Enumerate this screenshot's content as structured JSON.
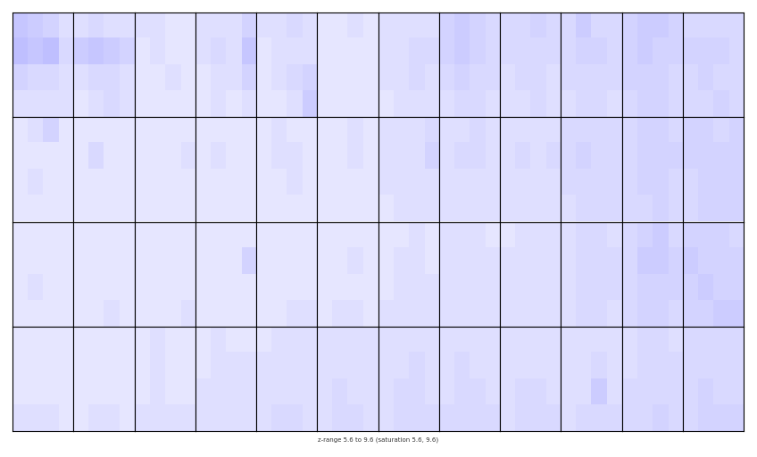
{
  "chart_data": {
    "type": "heatmap",
    "caption": "z-range 5.6 to 9.6 (saturation 5.6, 9.6)",
    "zlim": [
      5.6,
      9.6
    ],
    "colors": [
      "#ffffff",
      "#0000ff"
    ],
    "tick_labels": false,
    "panels": [
      [
        [
          [
            6.5,
            6.4,
            6.3,
            6.1
          ],
          [
            6.6,
            6.5,
            6.6,
            6.2
          ],
          [
            6.3,
            6.2,
            6.2,
            6.1
          ],
          [
            6.1,
            6.1,
            6.1,
            6.1
          ]
        ],
        [
          [
            6.1,
            6.2,
            6.1,
            6.1
          ],
          [
            6.4,
            6.5,
            6.4,
            6.3
          ],
          [
            6.1,
            6.2,
            6.2,
            6.1
          ],
          [
            6.0,
            6.1,
            6.2,
            6.1
          ]
        ],
        [
          [
            6.1,
            6.1,
            6.0,
            6.0
          ],
          [
            6.0,
            6.1,
            6.0,
            6.0
          ],
          [
            6.0,
            6.0,
            6.1,
            6.0
          ],
          [
            6.0,
            6.0,
            6.0,
            6.0
          ]
        ],
        [
          [
            6.1,
            6.1,
            6.1,
            6.3
          ],
          [
            6.1,
            6.2,
            6.1,
            6.5
          ],
          [
            6.0,
            6.1,
            6.1,
            6.3
          ],
          [
            6.0,
            6.1,
            6.0,
            6.1
          ]
        ],
        [
          [
            6.1,
            6.1,
            6.2,
            6.1
          ],
          [
            6.0,
            6.1,
            6.1,
            6.1
          ],
          [
            6.0,
            6.1,
            6.2,
            6.3
          ],
          [
            6.0,
            6.0,
            6.1,
            6.4
          ]
        ],
        [
          [
            6.0,
            6.0,
            6.1,
            6.0
          ],
          [
            6.0,
            6.0,
            6.0,
            6.0
          ],
          [
            6.0,
            6.0,
            6.0,
            6.0
          ],
          [
            6.0,
            6.0,
            6.0,
            6.0
          ]
        ],
        [
          [
            6.1,
            6.1,
            6.1,
            6.1
          ],
          [
            6.1,
            6.1,
            6.2,
            6.2
          ],
          [
            6.1,
            6.1,
            6.2,
            6.1
          ],
          [
            6.0,
            6.1,
            6.1,
            6.1
          ]
        ],
        [
          [
            6.3,
            6.4,
            6.3,
            6.2
          ],
          [
            6.3,
            6.4,
            6.3,
            6.2
          ],
          [
            6.2,
            6.3,
            6.2,
            6.2
          ],
          [
            6.1,
            6.2,
            6.2,
            6.1
          ]
        ],
        [
          [
            6.2,
            6.2,
            6.3,
            6.2
          ],
          [
            6.2,
            6.2,
            6.2,
            6.2
          ],
          [
            6.1,
            6.2,
            6.2,
            6.1
          ],
          [
            6.1,
            6.1,
            6.2,
            6.1
          ]
        ],
        [
          [
            6.2,
            6.4,
            6.2,
            6.2
          ],
          [
            6.2,
            6.3,
            6.3,
            6.2
          ],
          [
            6.2,
            6.2,
            6.2,
            6.2
          ],
          [
            6.1,
            6.2,
            6.2,
            6.1
          ]
        ],
        [
          [
            6.3,
            6.4,
            6.4,
            6.3
          ],
          [
            6.3,
            6.4,
            6.3,
            6.3
          ],
          [
            6.3,
            6.3,
            6.3,
            6.2
          ],
          [
            6.2,
            6.3,
            6.3,
            6.2
          ]
        ],
        [
          [
            6.2,
            6.2,
            6.2,
            6.2
          ],
          [
            6.3,
            6.3,
            6.3,
            6.2
          ],
          [
            6.2,
            6.3,
            6.2,
            6.2
          ],
          [
            6.2,
            6.2,
            6.3,
            6.2
          ]
        ]
      ],
      [
        [
          [
            6.0,
            6.1,
            6.3,
            6.0
          ],
          [
            6.0,
            6.0,
            6.0,
            6.0
          ],
          [
            6.0,
            6.1,
            6.0,
            6.0
          ],
          [
            6.0,
            6.0,
            6.0,
            6.0
          ]
        ],
        [
          [
            6.0,
            6.0,
            6.0,
            6.0
          ],
          [
            6.0,
            6.2,
            6.0,
            6.0
          ],
          [
            6.0,
            6.0,
            6.0,
            6.0
          ],
          [
            6.0,
            6.0,
            6.0,
            6.0
          ]
        ],
        [
          [
            6.0,
            6.0,
            6.0,
            6.0
          ],
          [
            6.0,
            6.0,
            6.0,
            6.1
          ],
          [
            6.0,
            6.0,
            6.0,
            6.0
          ],
          [
            6.0,
            6.0,
            6.0,
            6.0
          ]
        ],
        [
          [
            6.0,
            6.0,
            6.0,
            6.0
          ],
          [
            6.0,
            6.1,
            6.0,
            6.0
          ],
          [
            6.0,
            6.0,
            6.0,
            6.0
          ],
          [
            6.0,
            6.0,
            6.0,
            6.0
          ]
        ],
        [
          [
            6.0,
            6.1,
            6.0,
            6.0
          ],
          [
            6.0,
            6.1,
            6.1,
            6.0
          ],
          [
            6.0,
            6.0,
            6.1,
            6.0
          ],
          [
            6.0,
            6.0,
            6.0,
            6.0
          ]
        ],
        [
          [
            6.0,
            6.0,
            6.1,
            6.0
          ],
          [
            6.0,
            6.0,
            6.1,
            6.0
          ],
          [
            6.0,
            6.0,
            6.0,
            6.0
          ],
          [
            6.0,
            6.0,
            6.0,
            6.0
          ]
        ],
        [
          [
            6.1,
            6.1,
            6.1,
            6.2
          ],
          [
            6.1,
            6.1,
            6.1,
            6.3
          ],
          [
            6.1,
            6.1,
            6.1,
            6.1
          ],
          [
            6.0,
            6.1,
            6.1,
            6.1
          ]
        ],
        [
          [
            6.1,
            6.1,
            6.2,
            6.1
          ],
          [
            6.1,
            6.2,
            6.2,
            6.1
          ],
          [
            6.1,
            6.1,
            6.1,
            6.1
          ],
          [
            6.1,
            6.1,
            6.1,
            6.1
          ]
        ],
        [
          [
            6.1,
            6.1,
            6.1,
            6.1
          ],
          [
            6.1,
            6.2,
            6.1,
            6.2
          ],
          [
            6.1,
            6.1,
            6.1,
            6.1
          ],
          [
            6.1,
            6.1,
            6.1,
            6.1
          ]
        ],
        [
          [
            6.2,
            6.2,
            6.2,
            6.2
          ],
          [
            6.2,
            6.3,
            6.2,
            6.2
          ],
          [
            6.2,
            6.2,
            6.2,
            6.2
          ],
          [
            6.1,
            6.2,
            6.2,
            6.2
          ]
        ],
        [
          [
            6.2,
            6.3,
            6.3,
            6.2
          ],
          [
            6.2,
            6.3,
            6.3,
            6.3
          ],
          [
            6.2,
            6.3,
            6.3,
            6.2
          ],
          [
            6.2,
            6.2,
            6.3,
            6.2
          ]
        ],
        [
          [
            6.3,
            6.3,
            6.2,
            6.3
          ],
          [
            6.3,
            6.3,
            6.3,
            6.3
          ],
          [
            6.2,
            6.3,
            6.3,
            6.3
          ],
          [
            6.2,
            6.3,
            6.3,
            6.3
          ]
        ]
      ],
      [
        [
          [
            6.0,
            6.0,
            6.0,
            6.0
          ],
          [
            6.0,
            6.0,
            6.0,
            6.0
          ],
          [
            6.0,
            6.1,
            6.0,
            6.0
          ],
          [
            6.0,
            6.0,
            6.0,
            6.0
          ]
        ],
        [
          [
            6.0,
            6.0,
            6.0,
            6.0
          ],
          [
            6.0,
            6.0,
            6.0,
            6.0
          ],
          [
            6.0,
            6.0,
            6.0,
            6.0
          ],
          [
            6.0,
            6.0,
            6.1,
            6.0
          ]
        ],
        [
          [
            6.0,
            6.0,
            6.0,
            6.0
          ],
          [
            6.0,
            6.0,
            6.0,
            6.0
          ],
          [
            6.0,
            6.0,
            6.0,
            6.0
          ],
          [
            6.0,
            6.0,
            6.0,
            6.1
          ]
        ],
        [
          [
            6.0,
            6.0,
            6.0,
            6.0
          ],
          [
            6.0,
            6.0,
            6.0,
            6.3
          ],
          [
            6.0,
            6.0,
            6.0,
            6.0
          ],
          [
            6.0,
            6.0,
            6.0,
            6.0
          ]
        ],
        [
          [
            6.0,
            6.0,
            6.0,
            6.0
          ],
          [
            6.0,
            6.0,
            6.0,
            6.0
          ],
          [
            6.0,
            6.0,
            6.0,
            6.0
          ],
          [
            6.0,
            6.0,
            6.1,
            6.1
          ]
        ],
        [
          [
            6.0,
            6.0,
            6.0,
            6.0
          ],
          [
            6.0,
            6.0,
            6.1,
            6.0
          ],
          [
            6.0,
            6.0,
            6.0,
            6.0
          ],
          [
            6.0,
            6.1,
            6.1,
            6.0
          ]
        ],
        [
          [
            6.0,
            6.0,
            6.1,
            6.0
          ],
          [
            6.0,
            6.1,
            6.1,
            6.0
          ],
          [
            6.0,
            6.1,
            6.1,
            6.1
          ],
          [
            6.1,
            6.1,
            6.1,
            6.1
          ]
        ],
        [
          [
            6.1,
            6.1,
            6.1,
            6.0
          ],
          [
            6.1,
            6.1,
            6.1,
            6.1
          ],
          [
            6.1,
            6.1,
            6.1,
            6.1
          ],
          [
            6.1,
            6.1,
            6.1,
            6.1
          ]
        ],
        [
          [
            6.0,
            6.1,
            6.1,
            6.1
          ],
          [
            6.1,
            6.1,
            6.1,
            6.1
          ],
          [
            6.1,
            6.1,
            6.1,
            6.1
          ],
          [
            6.1,
            6.1,
            6.1,
            6.1
          ]
        ],
        [
          [
            6.1,
            6.2,
            6.2,
            6.1
          ],
          [
            6.1,
            6.2,
            6.2,
            6.2
          ],
          [
            6.1,
            6.2,
            6.2,
            6.2
          ],
          [
            6.1,
            6.2,
            6.2,
            6.1
          ]
        ],
        [
          [
            6.2,
            6.3,
            6.4,
            6.2
          ],
          [
            6.2,
            6.4,
            6.4,
            6.3
          ],
          [
            6.2,
            6.3,
            6.3,
            6.3
          ],
          [
            6.2,
            6.3,
            6.3,
            6.2
          ]
        ],
        [
          [
            6.3,
            6.3,
            6.3,
            6.2
          ],
          [
            6.4,
            6.3,
            6.3,
            6.3
          ],
          [
            6.3,
            6.4,
            6.3,
            6.3
          ],
          [
            6.3,
            6.3,
            6.4,
            6.4
          ]
        ]
      ],
      [
        [
          [
            6.0,
            6.0,
            6.0,
            6.0
          ],
          [
            6.0,
            6.0,
            6.0,
            6.0
          ],
          [
            6.0,
            6.0,
            6.0,
            6.0
          ],
          [
            6.1,
            6.1,
            6.1,
            6.0
          ]
        ],
        [
          [
            6.0,
            6.0,
            6.0,
            6.0
          ],
          [
            6.0,
            6.0,
            6.0,
            6.0
          ],
          [
            6.0,
            6.0,
            6.0,
            6.0
          ],
          [
            6.0,
            6.1,
            6.1,
            6.0
          ]
        ],
        [
          [
            6.0,
            6.1,
            6.0,
            6.0
          ],
          [
            6.0,
            6.1,
            6.0,
            6.0
          ],
          [
            6.0,
            6.1,
            6.0,
            6.0
          ],
          [
            6.1,
            6.1,
            6.1,
            6.1
          ]
        ],
        [
          [
            6.0,
            6.1,
            6.0,
            6.0
          ],
          [
            6.0,
            6.1,
            6.1,
            6.1
          ],
          [
            6.1,
            6.1,
            6.1,
            6.1
          ],
          [
            6.1,
            6.1,
            6.1,
            6.1
          ]
        ],
        [
          [
            6.0,
            6.1,
            6.1,
            6.1
          ],
          [
            6.1,
            6.1,
            6.1,
            6.1
          ],
          [
            6.1,
            6.1,
            6.1,
            6.1
          ],
          [
            6.1,
            6.2,
            6.2,
            6.1
          ]
        ],
        [
          [
            6.1,
            6.1,
            6.1,
            6.1
          ],
          [
            6.1,
            6.1,
            6.1,
            6.1
          ],
          [
            6.1,
            6.2,
            6.1,
            6.1
          ],
          [
            6.1,
            6.2,
            6.2,
            6.1
          ]
        ],
        [
          [
            6.1,
            6.1,
            6.1,
            6.1
          ],
          [
            6.1,
            6.1,
            6.2,
            6.1
          ],
          [
            6.1,
            6.2,
            6.2,
            6.1
          ],
          [
            6.1,
            6.2,
            6.2,
            6.2
          ]
        ],
        [
          [
            6.1,
            6.1,
            6.1,
            6.1
          ],
          [
            6.1,
            6.2,
            6.1,
            6.1
          ],
          [
            6.1,
            6.2,
            6.2,
            6.1
          ],
          [
            6.2,
            6.2,
            6.2,
            6.2
          ]
        ],
        [
          [
            6.1,
            6.1,
            6.1,
            6.1
          ],
          [
            6.1,
            6.1,
            6.1,
            6.1
          ],
          [
            6.1,
            6.2,
            6.2,
            6.1
          ],
          [
            6.1,
            6.2,
            6.2,
            6.2
          ]
        ],
        [
          [
            6.1,
            6.1,
            6.1,
            6.1
          ],
          [
            6.1,
            6.1,
            6.2,
            6.1
          ],
          [
            6.1,
            6.1,
            6.4,
            6.1
          ],
          [
            6.1,
            6.2,
            6.2,
            6.2
          ]
        ],
        [
          [
            6.1,
            6.2,
            6.2,
            6.1
          ],
          [
            6.1,
            6.2,
            6.2,
            6.2
          ],
          [
            6.2,
            6.2,
            6.2,
            6.2
          ],
          [
            6.2,
            6.2,
            6.3,
            6.2
          ]
        ],
        [
          [
            6.2,
            6.2,
            6.2,
            6.2
          ],
          [
            6.2,
            6.2,
            6.2,
            6.2
          ],
          [
            6.2,
            6.3,
            6.2,
            6.2
          ],
          [
            6.2,
            6.3,
            6.3,
            6.3
          ]
        ]
      ]
    ]
  }
}
